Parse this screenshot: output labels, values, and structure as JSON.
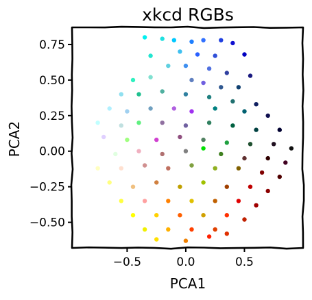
{
  "chart_data": {
    "type": "scatter",
    "title": "xkcd RGBs",
    "xlabel": "PCA1",
    "ylabel": "PCA2",
    "xlim": [
      -0.97,
      1.0
    ],
    "ylim": [
      -0.68,
      0.87
    ],
    "xticks": [
      -0.5,
      0.0,
      0.5
    ],
    "xtick_labels": [
      "−0.5",
      "0.0",
      "0.5"
    ],
    "yticks": [
      0.75,
      0.5,
      0.25,
      0.0,
      -0.25,
      -0.5
    ],
    "ytick_labels": [
      "0.75",
      "0.50",
      "0.25",
      "0.00",
      "−0.25",
      "−0.50"
    ],
    "grid": false,
    "legend": "none",
    "style": "xkcd",
    "series": [
      {
        "points": [
          {
            "x": -0.35,
            "y": 0.8,
            "color": "#00f0f0"
          },
          {
            "x": -0.2,
            "y": 0.79,
            "color": "#20e0e0"
          },
          {
            "x": -0.1,
            "y": 0.78,
            "color": "#00c8ff"
          },
          {
            "x": 0.05,
            "y": 0.77,
            "color": "#1e7fff"
          },
          {
            "x": 0.15,
            "y": 0.78,
            "color": "#3070ff"
          },
          {
            "x": 0.3,
            "y": 0.78,
            "color": "#2040e0"
          },
          {
            "x": 0.4,
            "y": 0.76,
            "color": "#1010d0"
          },
          {
            "x": 0.5,
            "y": 0.68,
            "color": "#0000c0"
          },
          {
            "x": -0.3,
            "y": 0.67,
            "color": "#22e5d0"
          },
          {
            "x": -0.05,
            "y": 0.7,
            "color": "#40c0f0"
          },
          {
            "x": 0.1,
            "y": 0.68,
            "color": "#2a60ff"
          },
          {
            "x": 0.25,
            "y": 0.67,
            "color": "#3050d8"
          },
          {
            "x": -0.15,
            "y": 0.6,
            "color": "#60d0e0"
          },
          {
            "x": 0.0,
            "y": 0.6,
            "color": "#4090f0"
          },
          {
            "x": 0.2,
            "y": 0.58,
            "color": "#5070e0"
          },
          {
            "x": 0.35,
            "y": 0.55,
            "color": "#3040a0"
          },
          {
            "x": 0.55,
            "y": 0.53,
            "color": "#1a1a80"
          },
          {
            "x": -0.45,
            "y": 0.5,
            "color": "#30f0c0"
          },
          {
            "x": -0.3,
            "y": 0.52,
            "color": "#80e0d0"
          },
          {
            "x": 0.05,
            "y": 0.5,
            "color": "#6080c0"
          },
          {
            "x": 0.15,
            "y": 0.48,
            "color": "#7060e0"
          },
          {
            "x": 0.3,
            "y": 0.45,
            "color": "#305890"
          },
          {
            "x": 0.45,
            "y": 0.45,
            "color": "#104070"
          },
          {
            "x": -0.55,
            "y": 0.4,
            "color": "#90e0f0"
          },
          {
            "x": -0.4,
            "y": 0.4,
            "color": "#20c090"
          },
          {
            "x": -0.2,
            "y": 0.42,
            "color": "#50b0a0"
          },
          {
            "x": 0.0,
            "y": 0.4,
            "color": "#3080a0"
          },
          {
            "x": 0.2,
            "y": 0.38,
            "color": "#208080"
          },
          {
            "x": 0.4,
            "y": 0.35,
            "color": "#207070"
          },
          {
            "x": 0.6,
            "y": 0.33,
            "color": "#102060"
          },
          {
            "x": -0.65,
            "y": 0.3,
            "color": "#b0f0ff"
          },
          {
            "x": -0.5,
            "y": 0.28,
            "color": "#a0d0f0"
          },
          {
            "x": -0.3,
            "y": 0.3,
            "color": "#70a0c0"
          },
          {
            "x": -0.1,
            "y": 0.3,
            "color": "#b060e0"
          },
          {
            "x": 0.05,
            "y": 0.28,
            "color": "#a030f0"
          },
          {
            "x": 0.25,
            "y": 0.3,
            "color": "#008080"
          },
          {
            "x": 0.5,
            "y": 0.28,
            "color": "#006070"
          },
          {
            "x": 0.7,
            "y": 0.25,
            "color": "#101050"
          },
          {
            "x": -0.75,
            "y": 0.2,
            "color": "#c0ffff"
          },
          {
            "x": -0.55,
            "y": 0.18,
            "color": "#c0e0e0"
          },
          {
            "x": -0.4,
            "y": 0.2,
            "color": "#60f080"
          },
          {
            "x": -0.2,
            "y": 0.2,
            "color": "#9070a0"
          },
          {
            "x": 0.0,
            "y": 0.18,
            "color": "#7060a0"
          },
          {
            "x": 0.2,
            "y": 0.2,
            "color": "#308060"
          },
          {
            "x": 0.4,
            "y": 0.18,
            "color": "#006040"
          },
          {
            "x": 0.6,
            "y": 0.15,
            "color": "#004040"
          },
          {
            "x": 0.8,
            "y": 0.15,
            "color": "#000030"
          },
          {
            "x": -0.7,
            "y": 0.1,
            "color": "#e0d0ff"
          },
          {
            "x": -0.5,
            "y": 0.08,
            "color": "#a0ff80"
          },
          {
            "x": -0.25,
            "y": 0.08,
            "color": "#d040d0"
          },
          {
            "x": -0.05,
            "y": 0.1,
            "color": "#905080"
          },
          {
            "x": 0.15,
            "y": 0.08,
            "color": "#508060"
          },
          {
            "x": 0.35,
            "y": 0.06,
            "color": "#20a040"
          },
          {
            "x": 0.55,
            "y": 0.05,
            "color": "#205030"
          },
          {
            "x": 0.75,
            "y": 0.05,
            "color": "#201020"
          },
          {
            "x": 0.9,
            "y": 0.02,
            "color": "#101010"
          },
          {
            "x": -0.8,
            "y": 0.0,
            "color": "#ffffff"
          },
          {
            "x": -0.6,
            "y": -0.02,
            "color": "#e0ffe0"
          },
          {
            "x": -0.4,
            "y": 0.0,
            "color": "#f0b0c0"
          },
          {
            "x": -0.2,
            "y": -0.02,
            "color": "#b07070"
          },
          {
            "x": 0.0,
            "y": 0.0,
            "color": "#808080"
          },
          {
            "x": 0.15,
            "y": 0.02,
            "color": "#00e000"
          },
          {
            "x": 0.3,
            "y": -0.02,
            "color": "#408020"
          },
          {
            "x": 0.5,
            "y": -0.05,
            "color": "#603030"
          },
          {
            "x": 0.7,
            "y": -0.05,
            "color": "#300000"
          },
          {
            "x": 0.85,
            "y": -0.08,
            "color": "#400020"
          },
          {
            "x": -0.75,
            "y": -0.12,
            "color": "#ffffc0"
          },
          {
            "x": -0.55,
            "y": -0.12,
            "color": "#ffe0d0"
          },
          {
            "x": -0.35,
            "y": -0.1,
            "color": "#d09090"
          },
          {
            "x": -0.15,
            "y": -0.12,
            "color": "#c07060"
          },
          {
            "x": 0.05,
            "y": -0.1,
            "color": "#80a040"
          },
          {
            "x": 0.25,
            "y": -0.12,
            "color": "#90b020"
          },
          {
            "x": 0.45,
            "y": -0.12,
            "color": "#806000"
          },
          {
            "x": 0.65,
            "y": -0.15,
            "color": "#800000"
          },
          {
            "x": 0.8,
            "y": -0.18,
            "color": "#500000"
          },
          {
            "x": -0.65,
            "y": -0.22,
            "color": "#ffff80"
          },
          {
            "x": -0.45,
            "y": -0.25,
            "color": "#f0c080"
          },
          {
            "x": -0.25,
            "y": -0.22,
            "color": "#d08040"
          },
          {
            "x": -0.05,
            "y": -0.25,
            "color": "#c0a000"
          },
          {
            "x": 0.15,
            "y": -0.22,
            "color": "#a0c000"
          },
          {
            "x": 0.35,
            "y": -0.25,
            "color": "#a04000"
          },
          {
            "x": 0.55,
            "y": -0.25,
            "color": "#c00000"
          },
          {
            "x": 0.7,
            "y": -0.28,
            "color": "#8b0000"
          },
          {
            "x": -0.55,
            "y": -0.35,
            "color": "#ffff40"
          },
          {
            "x": -0.35,
            "y": -0.35,
            "color": "#ffa0a0"
          },
          {
            "x": -0.15,
            "y": -0.35,
            "color": "#ff8000"
          },
          {
            "x": 0.05,
            "y": -0.35,
            "color": "#e0c000"
          },
          {
            "x": 0.25,
            "y": -0.35,
            "color": "#c06000"
          },
          {
            "x": 0.45,
            "y": -0.35,
            "color": "#e00000"
          },
          {
            "x": 0.6,
            "y": -0.38,
            "color": "#a00000"
          },
          {
            "x": -0.45,
            "y": -0.45,
            "color": "#ffff00"
          },
          {
            "x": -0.25,
            "y": -0.45,
            "color": "#ffd000"
          },
          {
            "x": -0.05,
            "y": -0.45,
            "color": "#ff6000"
          },
          {
            "x": 0.15,
            "y": -0.45,
            "color": "#d0a000"
          },
          {
            "x": 0.35,
            "y": -0.45,
            "color": "#ff3000"
          },
          {
            "x": 0.5,
            "y": -0.48,
            "color": "#c02000"
          },
          {
            "x": -0.35,
            "y": -0.55,
            "color": "#f0f000"
          },
          {
            "x": -0.15,
            "y": -0.55,
            "color": "#ffb000"
          },
          {
            "x": 0.05,
            "y": -0.55,
            "color": "#ff4000"
          },
          {
            "x": 0.25,
            "y": -0.55,
            "color": "#e04000"
          },
          {
            "x": -0.25,
            "y": -0.62,
            "color": "#ffe000"
          },
          {
            "x": 0.0,
            "y": -0.63,
            "color": "#f08000"
          },
          {
            "x": 0.2,
            "y": -0.6,
            "color": "#ff2000"
          },
          {
            "x": 0.35,
            "y": -0.58,
            "color": "#e03000"
          }
        ]
      }
    ]
  }
}
